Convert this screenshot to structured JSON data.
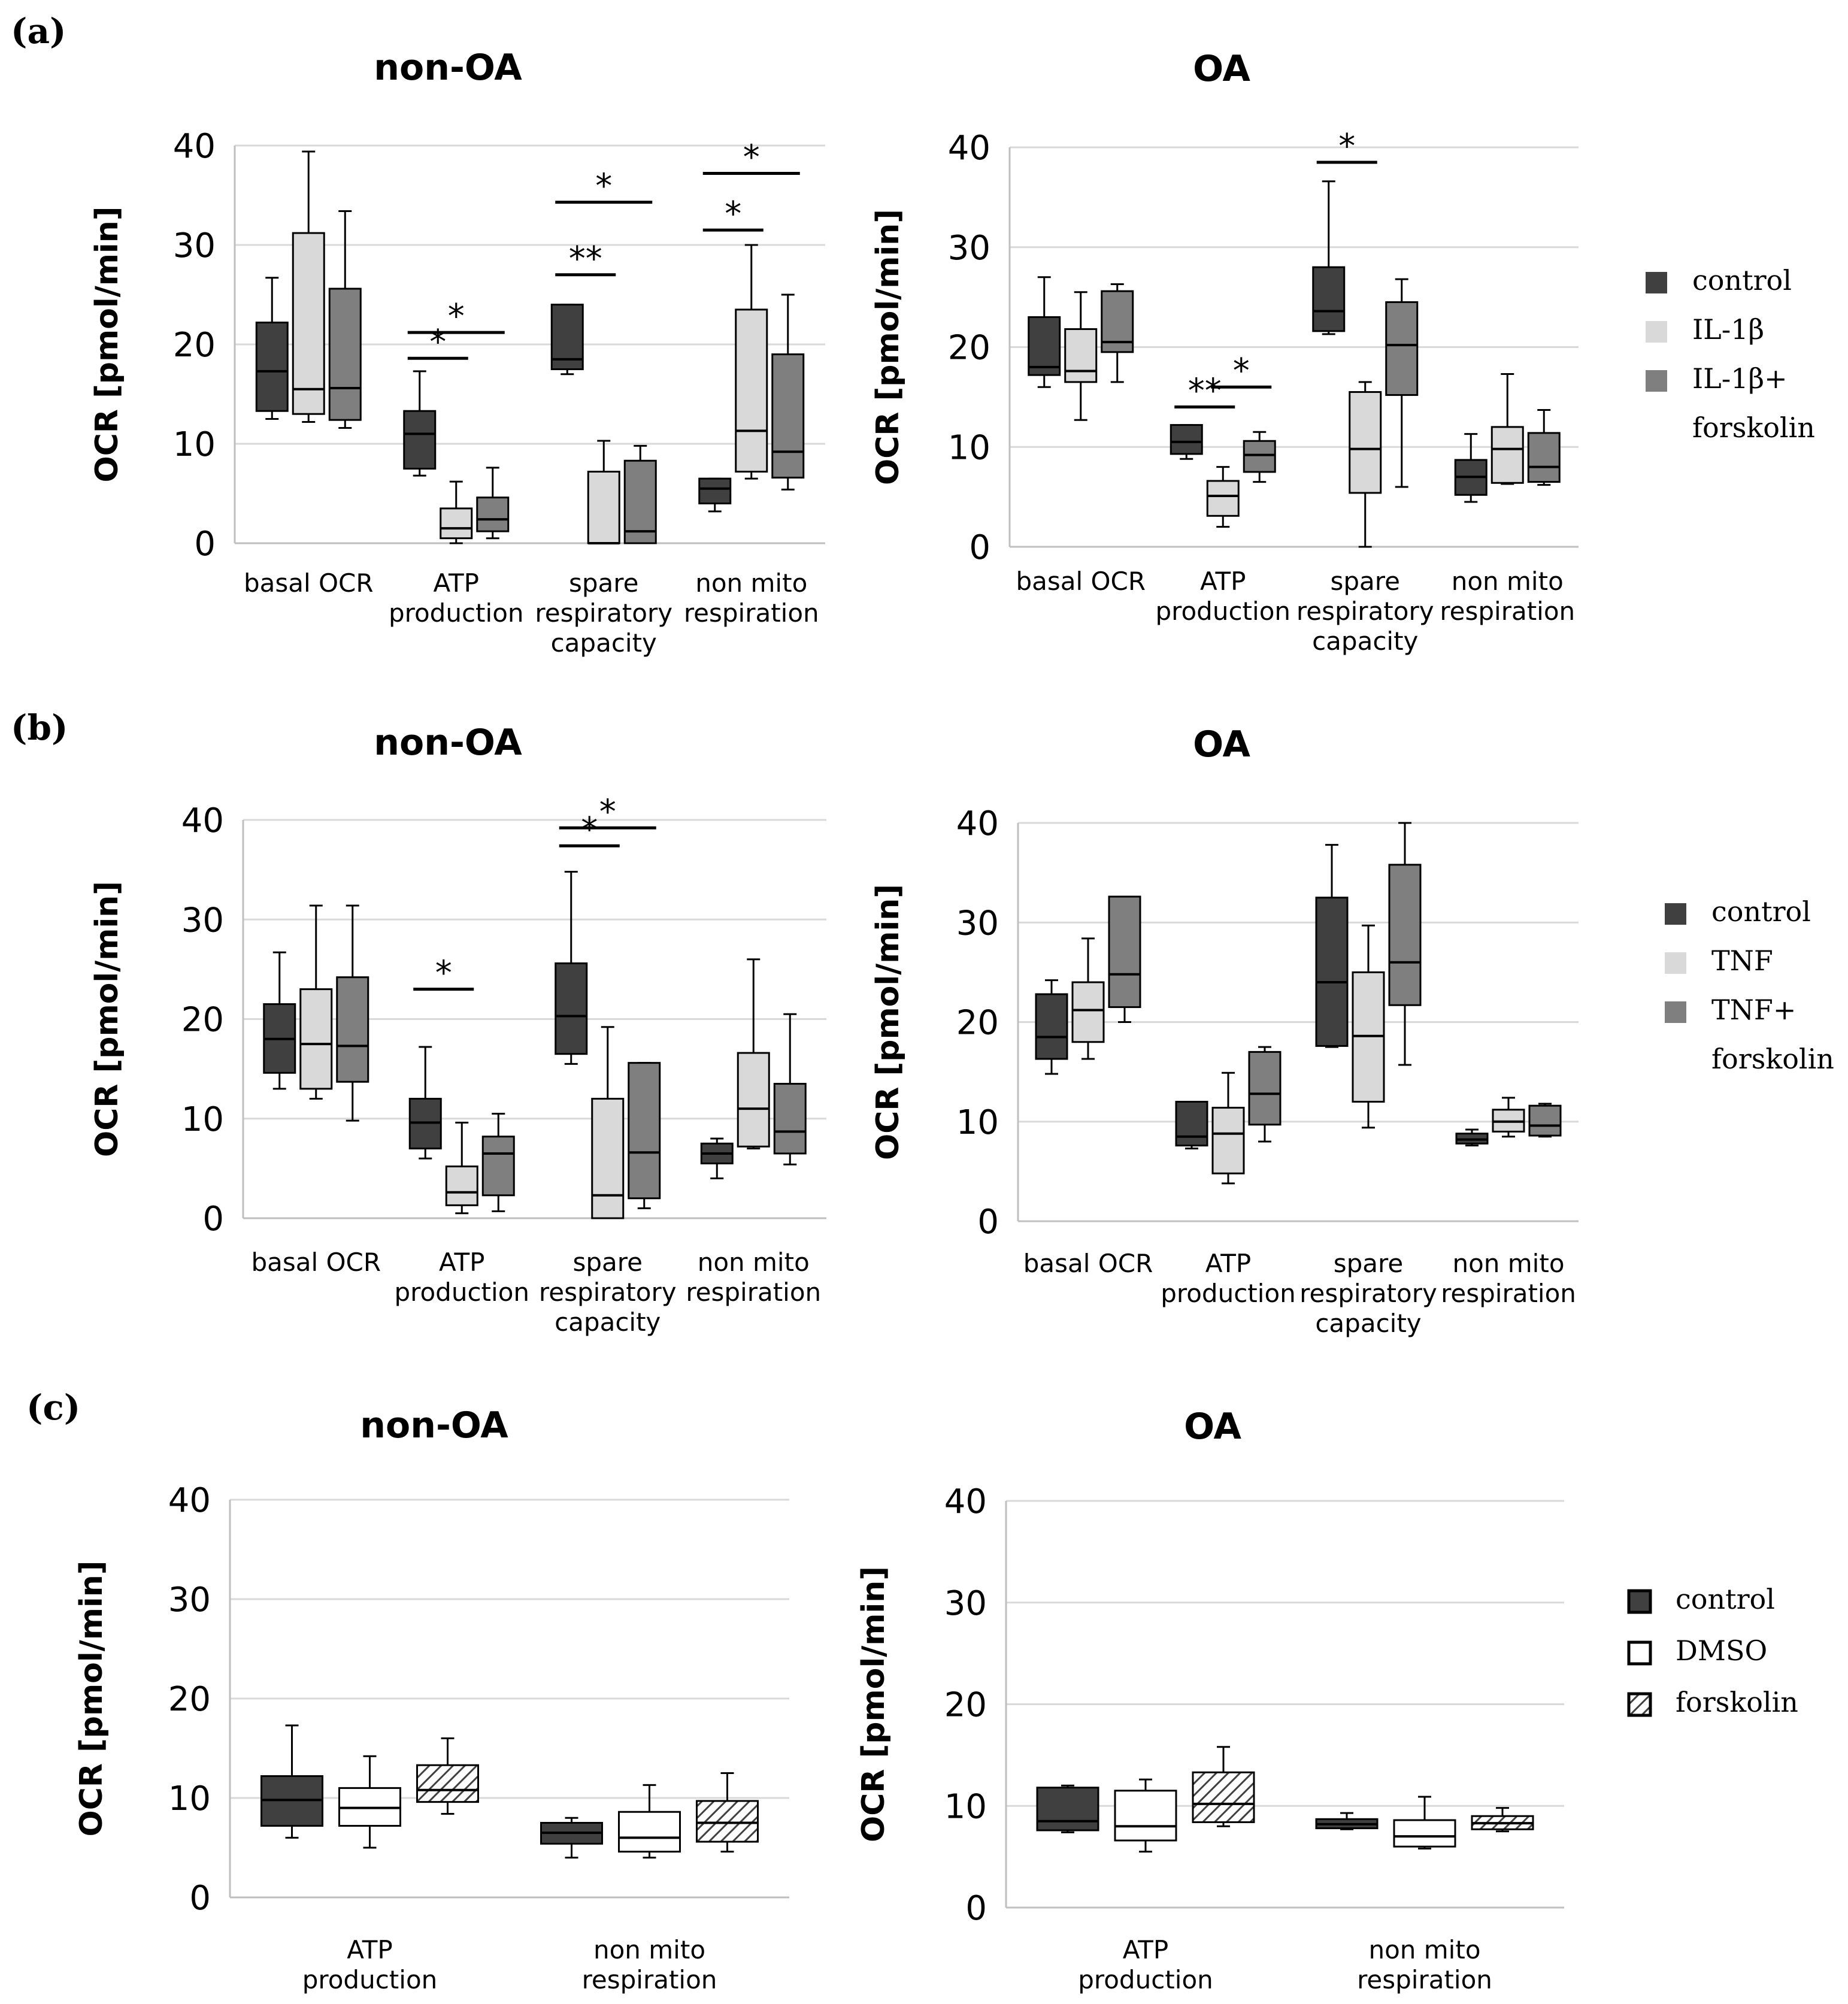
{
  "panels": [
    {
      "id": "a",
      "label": "(a)"
    },
    {
      "id": "b",
      "label": "(b)"
    },
    {
      "id": "c",
      "label": "(c)"
    }
  ],
  "legends": [
    {
      "panel": "a",
      "items": [
        {
          "label": "control",
          "color": "#404040",
          "pattern": "solid"
        },
        {
          "label": "IL-1β",
          "color": "#d9d9d9",
          "pattern": "solid"
        },
        {
          "label": "IL-1β+",
          "color": "#7f7f7f",
          "pattern": "solid"
        },
        {
          "label": "forskolin",
          "color": null,
          "pattern": "none"
        }
      ]
    },
    {
      "panel": "b",
      "items": [
        {
          "label": "control",
          "color": "#404040",
          "pattern": "solid"
        },
        {
          "label": "TNF",
          "color": "#d9d9d9",
          "pattern": "solid"
        },
        {
          "label": "TNF+",
          "color": "#7f7f7f",
          "pattern": "solid"
        },
        {
          "label": "forskolin",
          "color": null,
          "pattern": "none"
        }
      ]
    },
    {
      "panel": "c",
      "items": [
        {
          "label": "control",
          "color": "#404040",
          "pattern": "solid"
        },
        {
          "label": "DMSO",
          "color": "#ffffff",
          "pattern": "solid"
        },
        {
          "label": "forskolin",
          "color": "#ffffff",
          "pattern": "hatch"
        }
      ]
    }
  ],
  "chart_data": [
    {
      "panel": "a",
      "type": "box",
      "title": "non-OA",
      "ylabel": "OCR [pmol/min]",
      "ylim": [
        0,
        40
      ],
      "yticks": [
        0,
        10,
        20,
        30,
        40
      ],
      "grid": true,
      "categories": [
        [
          "basal OCR"
        ],
        [
          "ATP",
          "production"
        ],
        [
          "spare",
          "respiratory",
          "capacity"
        ],
        [
          "non mito",
          "respiration"
        ]
      ],
      "series": [
        {
          "name": "control",
          "color": "#404040",
          "boxes": [
            {
              "min": 12.5,
              "q1": 13.3,
              "median": 17.3,
              "q3": 22.2,
              "max": 26.7
            },
            {
              "min": 6.8,
              "q1": 7.5,
              "median": 11.0,
              "q3": 13.3,
              "max": 17.3
            },
            {
              "min": 17.0,
              "q1": 17.5,
              "median": 18.5,
              "q3": 24.0,
              "max": 24.0
            },
            {
              "min": 3.2,
              "q1": 4.0,
              "median": 5.5,
              "q3": 6.5,
              "max": 6.5
            }
          ]
        },
        {
          "name": "IL-1β",
          "color": "#d9d9d9",
          "boxes": [
            {
              "min": 12.2,
              "q1": 13.0,
              "median": 15.5,
              "q3": 31.2,
              "max": 39.4
            },
            {
              "min": 0.0,
              "q1": 0.5,
              "median": 1.5,
              "q3": 3.5,
              "max": 6.2
            },
            {
              "min": 0.0,
              "q1": 0.0,
              "median": 0.0,
              "q3": 7.2,
              "max": 10.3
            },
            {
              "min": 6.5,
              "q1": 7.2,
              "median": 11.3,
              "q3": 23.5,
              "max": 30.0
            }
          ]
        },
        {
          "name": "IL-1β+ forskolin",
          "color": "#7f7f7f",
          "boxes": [
            {
              "min": 11.6,
              "q1": 12.4,
              "median": 15.6,
              "q3": 25.6,
              "max": 33.4
            },
            {
              "min": 0.5,
              "q1": 1.2,
              "median": 2.4,
              "q3": 4.6,
              "max": 7.6
            },
            {
              "min": 0.0,
              "q1": 0.0,
              "median": 1.2,
              "q3": 8.3,
              "max": 9.8
            },
            {
              "min": 5.4,
              "q1": 6.6,
              "median": 9.2,
              "q3": 19.0,
              "max": 25.0
            }
          ]
        }
      ],
      "significance": [
        {
          "label": "*",
          "cat": 1,
          "from": 0,
          "to": 1,
          "y": 18.6
        },
        {
          "label": "*",
          "cat": 1,
          "from": 0,
          "to": 2,
          "y": 21.2
        },
        {
          "label": "**",
          "cat": 2,
          "from": 0,
          "to": 1,
          "y": 27.0
        },
        {
          "label": "*",
          "cat": 2,
          "from": 0,
          "to": 2,
          "y": 34.3
        },
        {
          "label": "*",
          "cat": 3,
          "from": 0,
          "to": 1,
          "y": 31.5
        },
        {
          "label": "*",
          "cat": 3,
          "from": 0,
          "to": 2,
          "y": 37.2
        }
      ]
    },
    {
      "panel": "a",
      "type": "box",
      "title": "OA",
      "ylabel": "OCR [pmol/min]",
      "ylim": [
        0,
        40
      ],
      "yticks": [
        0,
        10,
        20,
        30,
        40
      ],
      "grid": true,
      "categories": [
        [
          "basal OCR"
        ],
        [
          "ATP",
          "production"
        ],
        [
          "spare",
          "respiratory",
          "capacity"
        ],
        [
          "non mito",
          "respiration"
        ]
      ],
      "series": [
        {
          "name": "control",
          "color": "#404040",
          "boxes": [
            {
              "min": 16.0,
              "q1": 17.2,
              "median": 18.0,
              "q3": 23.0,
              "max": 27.0
            },
            {
              "min": 8.8,
              "q1": 9.3,
              "median": 10.5,
              "q3": 12.2,
              "max": 12.2
            },
            {
              "min": 21.3,
              "q1": 21.6,
              "median": 23.6,
              "q3": 28.0,
              "max": 36.6
            },
            {
              "min": 4.5,
              "q1": 5.2,
              "median": 7.0,
              "q3": 8.7,
              "max": 11.3
            }
          ]
        },
        {
          "name": "IL-1β",
          "color": "#d9d9d9",
          "boxes": [
            {
              "min": 12.7,
              "q1": 16.5,
              "median": 17.6,
              "q3": 21.8,
              "max": 25.5
            },
            {
              "min": 2.0,
              "q1": 3.1,
              "median": 5.1,
              "q3": 6.6,
              "max": 8.0
            },
            {
              "min": 0.0,
              "q1": 5.4,
              "median": 9.8,
              "q3": 15.5,
              "max": 16.5
            },
            {
              "min": 6.3,
              "q1": 6.4,
              "median": 9.8,
              "q3": 12.0,
              "max": 17.3
            }
          ]
        },
        {
          "name": "IL-1β+ forskolin",
          "color": "#7f7f7f",
          "boxes": [
            {
              "min": 16.5,
              "q1": 19.5,
              "median": 20.5,
              "q3": 25.6,
              "max": 26.3
            },
            {
              "min": 6.5,
              "q1": 7.5,
              "median": 9.2,
              "q3": 10.6,
              "max": 11.5
            },
            {
              "min": 6.0,
              "q1": 15.2,
              "median": 20.2,
              "q3": 24.5,
              "max": 26.8
            },
            {
              "min": 6.2,
              "q1": 6.5,
              "median": 8.0,
              "q3": 11.4,
              "max": 13.7
            }
          ]
        }
      ],
      "significance": [
        {
          "label": "**",
          "cat": 1,
          "from": 0,
          "to": 1,
          "y": 14.0
        },
        {
          "label": "*",
          "cat": 1,
          "from": 1,
          "to": 2,
          "y": 16.0
        },
        {
          "label": "*",
          "cat": 2,
          "from": 0,
          "to": 1,
          "y": 38.5
        }
      ]
    },
    {
      "panel": "b",
      "type": "box",
      "title": "non-OA",
      "ylabel": "OCR [pmol/min]",
      "ylim": [
        0,
        40
      ],
      "yticks": [
        0,
        10,
        20,
        30,
        40
      ],
      "grid": true,
      "categories": [
        [
          "basal OCR"
        ],
        [
          "ATP",
          "production"
        ],
        [
          "spare",
          "respiratory",
          "capacity"
        ],
        [
          "non mito",
          "respiration"
        ]
      ],
      "series": [
        {
          "name": "control",
          "color": "#404040",
          "boxes": [
            {
              "min": 13.0,
              "q1": 14.6,
              "median": 18.0,
              "q3": 21.5,
              "max": 26.7
            },
            {
              "min": 6.0,
              "q1": 7.0,
              "median": 9.6,
              "q3": 12.0,
              "max": 17.2
            },
            {
              "min": 15.5,
              "q1": 16.5,
              "median": 20.3,
              "q3": 25.6,
              "max": 34.8
            },
            {
              "min": 4.0,
              "q1": 5.5,
              "median": 6.5,
              "q3": 7.5,
              "max": 8.0
            }
          ]
        },
        {
          "name": "TNF",
          "color": "#d9d9d9",
          "boxes": [
            {
              "min": 12.0,
              "q1": 13.0,
              "median": 17.5,
              "q3": 23.0,
              "max": 31.4
            },
            {
              "min": 0.5,
              "q1": 1.3,
              "median": 2.6,
              "q3": 5.2,
              "max": 9.6
            },
            {
              "min": 0.0,
              "q1": 0.0,
              "median": 2.3,
              "q3": 12.0,
              "max": 19.2
            },
            {
              "min": 7.0,
              "q1": 7.2,
              "median": 11.0,
              "q3": 16.6,
              "max": 26.0
            }
          ]
        },
        {
          "name": "TNF+ forskolin",
          "color": "#7f7f7f",
          "boxes": [
            {
              "min": 9.8,
              "q1": 13.7,
              "median": 17.3,
              "q3": 24.2,
              "max": 31.4
            },
            {
              "min": 0.7,
              "q1": 2.3,
              "median": 6.5,
              "q3": 8.2,
              "max": 10.5
            },
            {
              "min": 1.0,
              "q1": 2.0,
              "median": 6.6,
              "q3": 15.6,
              "max": 15.6
            },
            {
              "min": 5.4,
              "q1": 6.5,
              "median": 8.7,
              "q3": 13.5,
              "max": 20.5
            }
          ]
        }
      ],
      "significance": [
        {
          "label": "*",
          "cat": 1,
          "from": 0,
          "to": 1,
          "y": 23.0
        },
        {
          "label": "*",
          "cat": 2,
          "from": 0,
          "to": 1,
          "y": 37.4
        },
        {
          "label": "*",
          "cat": 2,
          "from": 0,
          "to": 2,
          "y": 39.2
        }
      ]
    },
    {
      "panel": "b",
      "type": "box",
      "title": "OA",
      "ylabel": "OCR [pmol/min]",
      "ylim": [
        0,
        40
      ],
      "yticks": [
        0,
        10,
        20,
        30,
        40
      ],
      "grid": true,
      "categories": [
        [
          "basal OCR"
        ],
        [
          "ATP",
          "production"
        ],
        [
          "spare",
          "respiratory",
          "capacity"
        ],
        [
          "non mito",
          "respiration"
        ]
      ],
      "series": [
        {
          "name": "control",
          "color": "#404040",
          "boxes": [
            {
              "min": 14.8,
              "q1": 16.3,
              "median": 18.5,
              "q3": 22.8,
              "max": 24.2
            },
            {
              "min": 7.3,
              "q1": 7.6,
              "median": 8.5,
              "q3": 12.0,
              "max": 12.0
            },
            {
              "min": 17.5,
              "q1": 17.6,
              "median": 24.0,
              "q3": 32.5,
              "max": 37.8
            },
            {
              "min": 7.6,
              "q1": 7.8,
              "median": 8.2,
              "q3": 8.8,
              "max": 9.2
            }
          ]
        },
        {
          "name": "TNF",
          "color": "#d9d9d9",
          "boxes": [
            {
              "min": 16.3,
              "q1": 18.0,
              "median": 21.2,
              "q3": 24.0,
              "max": 28.4
            },
            {
              "min": 3.8,
              "q1": 4.8,
              "median": 8.8,
              "q3": 11.4,
              "max": 14.9
            },
            {
              "min": 9.4,
              "q1": 12.0,
              "median": 18.6,
              "q3": 25.0,
              "max": 29.7
            },
            {
              "min": 8.5,
              "q1": 9.0,
              "median": 10.0,
              "q3": 11.2,
              "max": 12.4
            }
          ]
        },
        {
          "name": "TNF+ forskolin",
          "color": "#7f7f7f",
          "boxes": [
            {
              "min": 20.0,
              "q1": 21.5,
              "median": 24.8,
              "q3": 32.6,
              "max": 32.6
            },
            {
              "min": 8.0,
              "q1": 9.7,
              "median": 12.8,
              "q3": 17.0,
              "max": 17.5
            },
            {
              "min": 15.7,
              "q1": 21.7,
              "median": 26.0,
              "q3": 35.8,
              "max": 40.0
            },
            {
              "min": 8.5,
              "q1": 8.6,
              "median": 9.6,
              "q3": 11.6,
              "max": 11.8
            }
          ]
        }
      ],
      "significance": []
    },
    {
      "panel": "c",
      "type": "box",
      "title": "non-OA",
      "ylabel": "OCR [pmol/min]",
      "ylim": [
        0,
        40
      ],
      "yticks": [
        0,
        10,
        20,
        30,
        40
      ],
      "grid": true,
      "categories": [
        [
          "ATP",
          "production"
        ],
        [
          "non mito",
          "respiration"
        ]
      ],
      "series": [
        {
          "name": "control",
          "color": "#404040",
          "pattern": "solid",
          "boxes": [
            {
              "min": 6.0,
              "q1": 7.2,
              "median": 9.8,
              "q3": 12.2,
              "max": 17.3
            },
            {
              "min": 4.0,
              "q1": 5.4,
              "median": 6.5,
              "q3": 7.5,
              "max": 8.0
            }
          ]
        },
        {
          "name": "DMSO",
          "color": "#ffffff",
          "pattern": "solid",
          "boxes": [
            {
              "min": 5.0,
              "q1": 7.2,
              "median": 9.0,
              "q3": 11.0,
              "max": 14.2
            },
            {
              "min": 4.0,
              "q1": 4.6,
              "median": 6.0,
              "q3": 8.6,
              "max": 11.3
            }
          ]
        },
        {
          "name": "forskolin",
          "color": "#ffffff",
          "pattern": "hatch",
          "boxes": [
            {
              "min": 8.4,
              "q1": 9.6,
              "median": 10.8,
              "q3": 13.3,
              "max": 16.0
            },
            {
              "min": 4.6,
              "q1": 5.6,
              "median": 7.5,
              "q3": 9.7,
              "max": 12.5
            }
          ]
        }
      ],
      "significance": []
    },
    {
      "panel": "c",
      "type": "box",
      "title": "OA",
      "ylabel": "OCR [pmol/min]",
      "ylim": [
        0,
        40
      ],
      "yticks": [
        0,
        10,
        20,
        30,
        40
      ],
      "grid": true,
      "categories": [
        [
          "ATP",
          "production"
        ],
        [
          "non mito",
          "respiration"
        ]
      ],
      "series": [
        {
          "name": "control",
          "color": "#404040",
          "pattern": "solid",
          "boxes": [
            {
              "min": 7.4,
              "q1": 7.6,
              "median": 8.5,
              "q3": 11.8,
              "max": 12.0
            },
            {
              "min": 7.7,
              "q1": 7.8,
              "median": 8.2,
              "q3": 8.7,
              "max": 9.3
            }
          ]
        },
        {
          "name": "DMSO",
          "color": "#ffffff",
          "pattern": "solid",
          "boxes": [
            {
              "min": 5.5,
              "q1": 6.6,
              "median": 8.0,
              "q3": 11.5,
              "max": 12.6
            },
            {
              "min": 5.8,
              "q1": 6.0,
              "median": 7.0,
              "q3": 8.6,
              "max": 10.9
            }
          ]
        },
        {
          "name": "forskolin",
          "color": "#ffffff",
          "pattern": "hatch",
          "boxes": [
            {
              "min": 8.0,
              "q1": 8.4,
              "median": 10.2,
              "q3": 13.3,
              "max": 15.8
            },
            {
              "min": 7.5,
              "q1": 7.7,
              "median": 8.3,
              "q3": 9.0,
              "max": 9.8
            }
          ]
        }
      ],
      "significance": []
    }
  ]
}
